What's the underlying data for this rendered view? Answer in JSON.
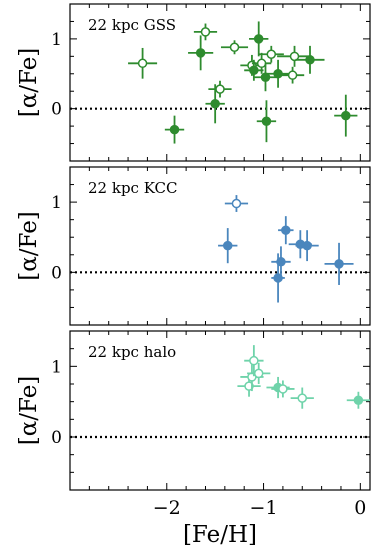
{
  "chart_data": {
    "type": "scatter",
    "xlabel": "[Fe/H]",
    "xlim": [
      -3.0,
      0.1
    ],
    "xticks": [
      -2,
      -1,
      0
    ],
    "xtick_labels": [
      "−2",
      "−1",
      "0"
    ],
    "shared_x": true,
    "panels": [
      {
        "label": "22 kpc GSS",
        "ylabel": "[α/Fe]",
        "ylim": [
          -0.75,
          1.5
        ],
        "yticks": [
          0,
          1
        ],
        "reference_line": 0,
        "color": "#2e8b2e",
        "points": [
          {
            "x": -2.25,
            "y": 0.65,
            "xerr": 0.15,
            "yerr": 0.22,
            "filled": false
          },
          {
            "x": -1.92,
            "y": -0.3,
            "xerr": 0.1,
            "yerr": 0.2,
            "filled": true
          },
          {
            "x": -1.65,
            "y": 0.8,
            "xerr": 0.13,
            "yerr": 0.25,
            "filled": true
          },
          {
            "x": -1.6,
            "y": 1.1,
            "xerr": 0.12,
            "yerr": 0.12,
            "filled": false
          },
          {
            "x": -1.5,
            "y": 0.07,
            "xerr": 0.1,
            "yerr": 0.28,
            "filled": true
          },
          {
            "x": -1.45,
            "y": 0.28,
            "xerr": 0.12,
            "yerr": 0.12,
            "filled": false
          },
          {
            "x": -1.3,
            "y": 0.88,
            "xerr": 0.14,
            "yerr": 0.1,
            "filled": false
          },
          {
            "x": -1.12,
            "y": 0.62,
            "xerr": 0.12,
            "yerr": 0.15,
            "filled": false
          },
          {
            "x": -1.1,
            "y": 0.55,
            "xerr": 0.1,
            "yerr": 0.15,
            "filled": true
          },
          {
            "x": -1.05,
            "y": 1.0,
            "xerr": 0.1,
            "yerr": 0.25,
            "filled": true
          },
          {
            "x": -1.02,
            "y": 0.65,
            "xerr": 0.1,
            "yerr": 0.15,
            "filled": false
          },
          {
            "x": -0.98,
            "y": 0.45,
            "xerr": 0.12,
            "yerr": 0.2,
            "filled": true
          },
          {
            "x": -0.97,
            "y": -0.18,
            "xerr": 0.1,
            "yerr": 0.3,
            "filled": true
          },
          {
            "x": -0.92,
            "y": 0.78,
            "xerr": 0.13,
            "yerr": 0.12,
            "filled": false
          },
          {
            "x": -0.85,
            "y": 0.5,
            "xerr": 0.15,
            "yerr": 0.2,
            "filled": true
          },
          {
            "x": -0.7,
            "y": 0.48,
            "xerr": 0.12,
            "yerr": 0.12,
            "filled": false
          },
          {
            "x": -0.68,
            "y": 0.75,
            "xerr": 0.18,
            "yerr": 0.15,
            "filled": false
          },
          {
            "x": -0.52,
            "y": 0.7,
            "xerr": 0.15,
            "yerr": 0.2,
            "filled": true
          },
          {
            "x": -0.15,
            "y": -0.1,
            "xerr": 0.12,
            "yerr": 0.3,
            "filled": true
          }
        ]
      },
      {
        "label": "22 kpc KCC",
        "ylabel": "[α/Fe]",
        "ylim": [
          -0.75,
          1.5
        ],
        "yticks": [
          0,
          1
        ],
        "reference_line": 0,
        "color": "#4a86bd",
        "points": [
          {
            "x": -1.37,
            "y": 0.38,
            "xerr": 0.1,
            "yerr": 0.25,
            "filled": true
          },
          {
            "x": -1.28,
            "y": 0.98,
            "xerr": 0.12,
            "yerr": 0.12,
            "filled": false
          },
          {
            "x": -0.85,
            "y": -0.08,
            "xerr": 0.07,
            "yerr": 0.35,
            "filled": true
          },
          {
            "x": -0.82,
            "y": 0.15,
            "xerr": 0.1,
            "yerr": 0.22,
            "filled": true
          },
          {
            "x": -0.77,
            "y": 0.6,
            "xerr": 0.08,
            "yerr": 0.2,
            "filled": true
          },
          {
            "x": -0.62,
            "y": 0.4,
            "xerr": 0.12,
            "yerr": 0.2,
            "filled": true
          },
          {
            "x": -0.55,
            "y": 0.38,
            "xerr": 0.12,
            "yerr": 0.22,
            "filled": true
          },
          {
            "x": -0.22,
            "y": 0.12,
            "xerr": 0.15,
            "yerr": 0.3,
            "filled": true
          }
        ]
      },
      {
        "label": "22 kpc halo",
        "ylabel": "[α/Fe]",
        "ylim": [
          -0.75,
          1.5
        ],
        "yticks": [
          0,
          1
        ],
        "reference_line": 0,
        "color": "#6fd3aa",
        "points": [
          {
            "x": -1.15,
            "y": 0.72,
            "xerr": 0.12,
            "yerr": 0.15,
            "filled": false
          },
          {
            "x": -1.12,
            "y": 0.85,
            "xerr": 0.12,
            "yerr": 0.2,
            "filled": false
          },
          {
            "x": -1.1,
            "y": 1.08,
            "xerr": 0.1,
            "yerr": 0.22,
            "filled": false
          },
          {
            "x": -1.05,
            "y": 0.9,
            "xerr": 0.12,
            "yerr": 0.15,
            "filled": false
          },
          {
            "x": -0.85,
            "y": 0.7,
            "xerr": 0.12,
            "yerr": 0.15,
            "filled": true
          },
          {
            "x": -0.8,
            "y": 0.68,
            "xerr": 0.12,
            "yerr": 0.12,
            "filled": false
          },
          {
            "x": -0.6,
            "y": 0.55,
            "xerr": 0.12,
            "yerr": 0.15,
            "filled": false
          },
          {
            "x": -0.02,
            "y": 0.52,
            "xerr": 0.12,
            "yerr": 0.12,
            "filled": true
          }
        ]
      }
    ]
  }
}
